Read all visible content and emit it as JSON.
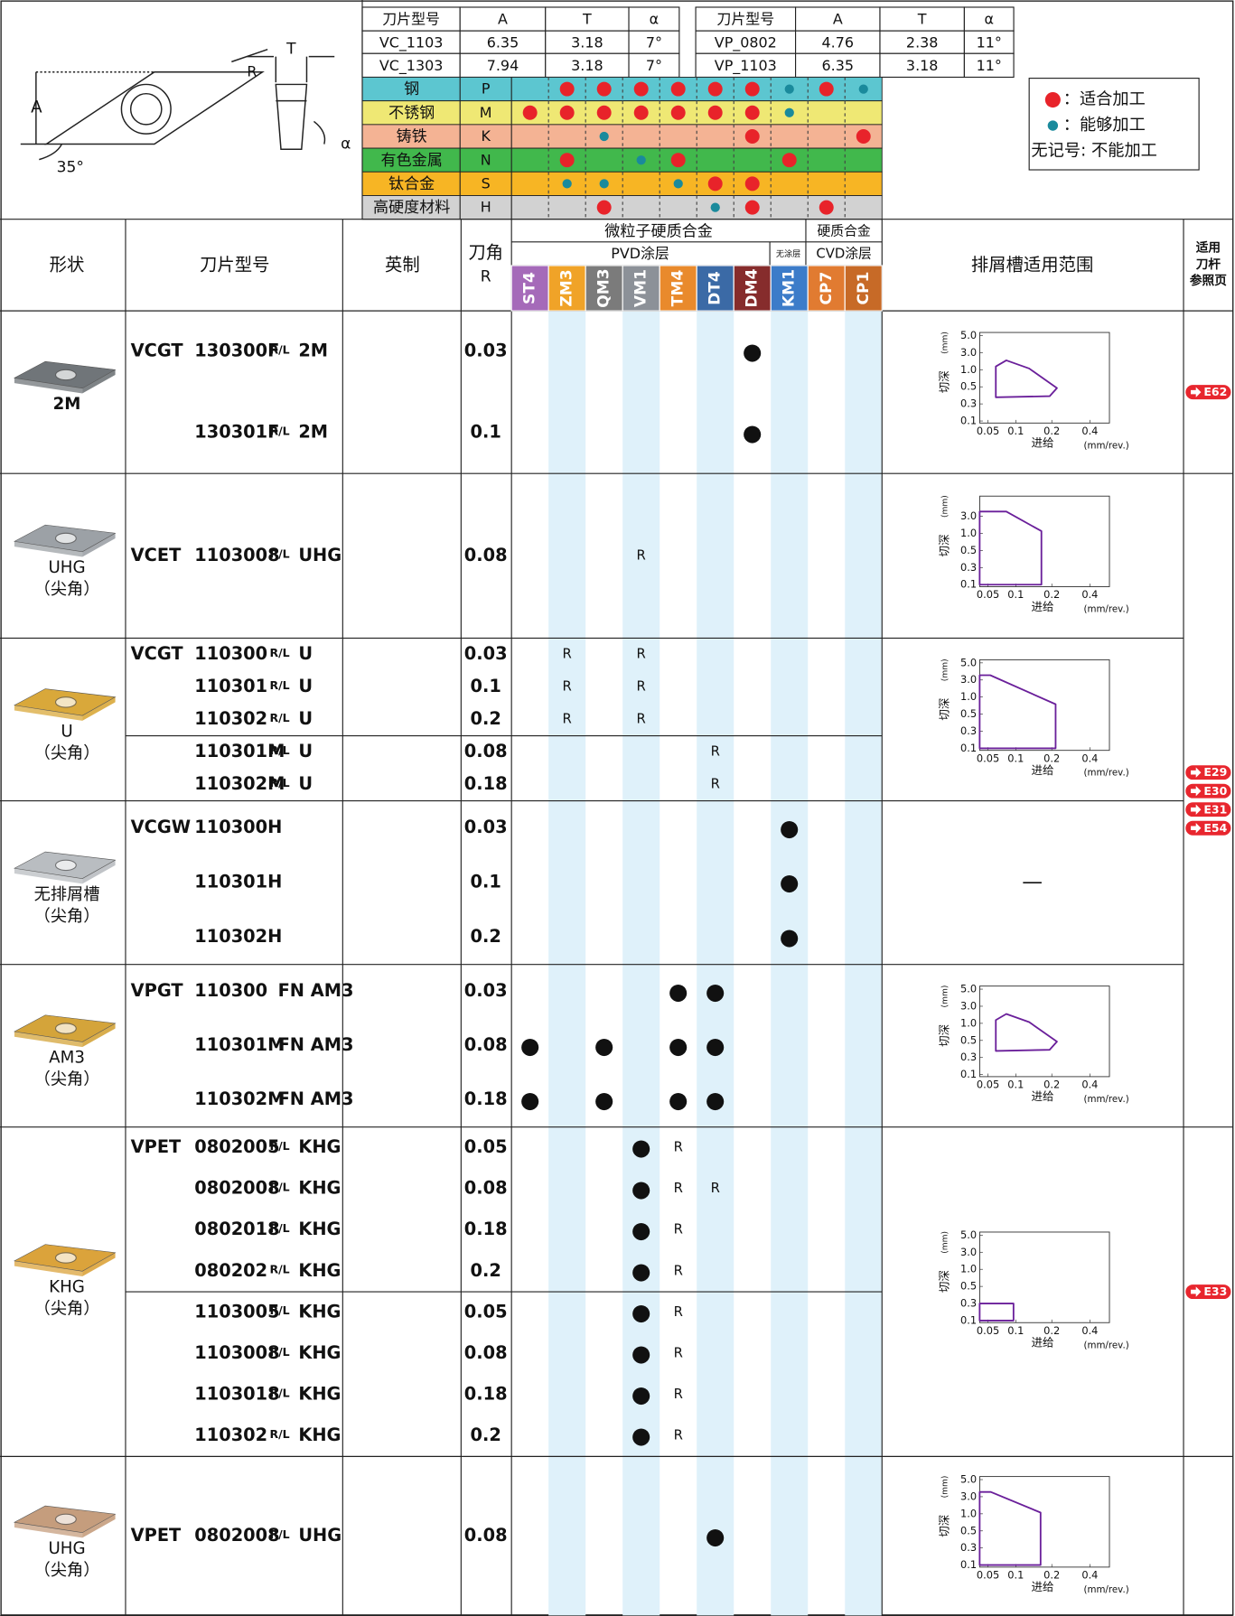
{
  "header": {
    "dims": {
      "columns": [
        "刀片型号",
        "A",
        "T",
        "α",
        "刀片型号",
        "A",
        "T",
        "α"
      ],
      "rows": [
        [
          "VC_1103",
          6.35,
          3.18,
          "7°",
          "VP_0802",
          4.76,
          2.38,
          "11°"
        ],
        [
          "VC_1303",
          7.94,
          3.18,
          "7°",
          "VP_1103",
          6.35,
          3.18,
          "11°"
        ]
      ]
    },
    "diagram": {
      "a": "A",
      "t": "T",
      "r": "R",
      "alpha": "α",
      "angle": "35°"
    },
    "materials": [
      {
        "name": "钢",
        "code": "P",
        "color": "#5cc6d0",
        "suitable": [
          "ZM3",
          "QM3",
          "VM1",
          "TM4",
          "DT4",
          "DM4",
          "CP7"
        ],
        "capable": [
          "KM1",
          "CP1"
        ]
      },
      {
        "name": "不锈钢",
        "code": "M",
        "color": "#efe874",
        "suitable": [
          "ST4",
          "ZM3",
          "QM3",
          "VM1",
          "TM4",
          "DT4",
          "DM4"
        ],
        "capable": [
          "KM1"
        ]
      },
      {
        "name": "铸铁",
        "code": "K",
        "color": "#f4b394",
        "suitable": [
          "DM4",
          "CP1"
        ],
        "capable": [
          "QM3"
        ]
      },
      {
        "name": "有色金属",
        "code": "N",
        "color": "#41b84c",
        "suitable": [
          "ZM3",
          "TM4",
          "KM1"
        ],
        "capable": [
          "VM1"
        ]
      },
      {
        "name": "钛合金",
        "code": "S",
        "color": "#f7b524",
        "suitable": [
          "DT4",
          "DM4"
        ],
        "capable": [
          "ZM3",
          "QM3",
          "TM4"
        ]
      },
      {
        "name": "高硬度材料",
        "code": "H",
        "color": "#d2d2d2",
        "suitable": [
          "QM3",
          "DM4",
          "CP7"
        ],
        "capable": [
          "DT4"
        ]
      }
    ],
    "legend": [
      {
        "text": "：适合加工",
        "color": "#e8232a"
      },
      {
        "text": "：能够加工",
        "color": "#1a8a9c"
      },
      {
        "text": "无记号: 不能加工"
      }
    ]
  },
  "table": {
    "headers": {
      "shape": "形状",
      "model": "刀片型号",
      "imperial": "英制",
      "radius": [
        "刀角",
        "R"
      ],
      "micro": "微粒子硬质合金",
      "pvd": "PVD涂层",
      "uncoated": "无涂层",
      "carbide": "硬质合金",
      "cvd": "CVD涂层",
      "chipbreaker": "排屑槽适用范围",
      "ref": [
        "适用",
        "刀杆",
        "参照页"
      ]
    },
    "grades": [
      {
        "name": "ST4",
        "color": "#a56ab9"
      },
      {
        "name": "ZM3",
        "color": "#f0a328"
      },
      {
        "name": "QM3",
        "color": "#7b7b7b"
      },
      {
        "name": "VM1",
        "color": "#8c9198"
      },
      {
        "name": "TM4",
        "color": "#e98a2c"
      },
      {
        "name": "DT4",
        "color": "#3b6aa6"
      },
      {
        "name": "DM4",
        "color": "#862c2c"
      },
      {
        "name": "KM1",
        "color": "#3c7cc9"
      },
      {
        "name": "CP7",
        "color": "#e17b31"
      },
      {
        "name": "CP1",
        "color": "#c76a27"
      }
    ],
    "graph_axes": {
      "y_label": "切深",
      "y_unit": "(mm)",
      "x_label": "进给",
      "x_unit": "(mm/rev.)"
    },
    "groups": [
      {
        "shape": [
          "2M"
        ],
        "insert_color": "#707579",
        "sections": [
          [
            {
              "series": "VCGT",
              "code": "130300F",
              "hand": "R/L",
              "suffix": "2M",
              "r": 0.03,
              "cells": [
                null,
                null,
                null,
                null,
                null,
                null,
                "●",
                null,
                null,
                null
              ]
            },
            {
              "code": "130301F",
              "hand": "R/L",
              "suffix": "2M",
              "r": 0.1,
              "cells": [
                null,
                null,
                null,
                null,
                null,
                null,
                "●",
                null,
                null,
                null
              ]
            }
          ]
        ],
        "graph": {
          "xticks": [
            0.05,
            0.1,
            0.2,
            0.4
          ],
          "yticks": [
            0.1,
            0.3,
            0.5,
            {
              "value": 1,
              "label": "1.0"
            },
            {
              "value": 3,
              "label": "3.0"
            },
            {
              "value": 5,
              "label": "5.0"
            }
          ],
          "region": {
            "x": [
              0.064,
              0.064,
              0.083,
              0.137,
              0.227,
              0.194
            ],
            "y": [
              0.377,
              1.39,
              2.1,
              1.14,
              0.486,
              0.39
            ]
          }
        },
        "refs": [
          "E62"
        ]
      },
      {
        "shape": [
          "UHG",
          "（尖角）"
        ],
        "insert_color": "#9ca1a6",
        "sections": [
          [
            {
              "series": "VCET",
              "code": "1103008",
              "hand": "R/L",
              "suffix": "UHG",
              "r": 0.08,
              "cells": [
                null,
                null,
                null,
                "R",
                null,
                null,
                null,
                null,
                null,
                null
              ]
            }
          ]
        ],
        "graph": {
          "xticks": [
            0.05,
            0.1,
            0.2,
            0.4
          ],
          "yticks": [
            0.1,
            0.3,
            0.5,
            {
              "value": 1,
              "label": "1.0"
            },
            {
              "value": 3,
              "label": "3.0"
            }
          ],
          "region": {
            "x": [
              0.035,
              0.083,
              0.171,
              0.171,
              0.035
            ],
            "y": [
              3.55,
              3.55,
              1.27,
              0.1,
              0.1
            ]
          }
        }
      },
      {
        "shape": [
          "U",
          "（尖角）"
        ],
        "insert_color": "#d9a83a",
        "sections": [
          [
            {
              "series": "VCGT",
              "code": "110300",
              "hand": "R/L",
              "suffix": "U",
              "r": 0.03,
              "cells": [
                null,
                "R",
                null,
                "R",
                null,
                null,
                null,
                null,
                null,
                null
              ]
            },
            {
              "code": "110301",
              "hand": "R/L",
              "suffix": "U",
              "r": 0.1,
              "cells": [
                null,
                "R",
                null,
                "R",
                null,
                null,
                null,
                null,
                null,
                null
              ]
            },
            {
              "code": "110302",
              "hand": "R/L",
              "suffix": "U",
              "r": 0.2,
              "cells": [
                null,
                "R",
                null,
                "R",
                null,
                null,
                null,
                null,
                null,
                null
              ]
            }
          ],
          [
            {
              "code": "110301M",
              "hand": "R/L",
              "suffix": "U",
              "r": 0.08,
              "cells": [
                null,
                null,
                null,
                null,
                null,
                "R",
                null,
                null,
                null,
                null
              ]
            },
            {
              "code": "110302M",
              "hand": "R/L",
              "suffix": "U",
              "r": 0.18,
              "cells": [
                null,
                null,
                null,
                null,
                null,
                "R",
                null,
                null,
                null,
                null
              ]
            }
          ]
        ],
        "graph": {
          "xticks": [
            0.05,
            0.1,
            0.2,
            0.4
          ],
          "yticks": [
            0.1,
            0.3,
            0.5,
            {
              "value": 1,
              "label": "1.0"
            },
            {
              "value": 3,
              "label": "3.0"
            },
            {
              "value": 5,
              "label": "5.0"
            }
          ],
          "region": {
            "x": [
              0.035,
              0.054,
              0.22,
              0.22,
              0.035
            ],
            "y": [
              3.55,
              3.55,
              0.79,
              0.1,
              0.1
            ]
          }
        },
        "refs": [
          "E29",
          "E30",
          "E31",
          "E54"
        ]
      },
      {
        "shape": [
          "无排屑槽",
          "（尖角）"
        ],
        "insert_color": "#b9bdc1",
        "sections": [
          [
            {
              "series": "VCGW",
              "code": "110300H",
              "r": 0.03,
              "cells": [
                null,
                null,
                null,
                null,
                null,
                null,
                null,
                "●",
                null,
                null
              ]
            },
            {
              "code": "110301H",
              "r": 0.1,
              "cells": [
                null,
                null,
                null,
                null,
                null,
                null,
                null,
                "●",
                null,
                null
              ]
            },
            {
              "code": "110302H",
              "r": 0.2,
              "cells": [
                null,
                null,
                null,
                null,
                null,
                null,
                null,
                "●",
                null,
                null
              ]
            }
          ]
        ],
        "graph": {
          "text": "—"
        }
      },
      {
        "shape": [
          "AM3",
          "（尖角）"
        ],
        "insert_color": "#d4a43a",
        "sections": [
          [
            {
              "series": "VPGT",
              "code": "110300",
              "suffix": "FN AM3",
              "r": 0.03,
              "cells": [
                null,
                null,
                null,
                null,
                "●",
                "●",
                null,
                null,
                null,
                null
              ]
            },
            {
              "code": "110301M",
              "suffix": "FN AM3",
              "r": 0.08,
              "cells": [
                "●",
                null,
                "●",
                null,
                "●",
                "●",
                null,
                null,
                null,
                null
              ]
            },
            {
              "code": "110302M",
              "suffix": "FN AM3",
              "r": 0.18,
              "cells": [
                "●",
                null,
                "●",
                null,
                "●",
                "●",
                null,
                null,
                null,
                null
              ]
            }
          ]
        ],
        "graph": {
          "xticks": [
            0.05,
            0.1,
            0.2,
            0.4
          ],
          "yticks": [
            0.1,
            0.3,
            0.5,
            {
              "value": 1,
              "label": "1.0"
            },
            {
              "value": 3,
              "label": "3.0"
            },
            {
              "value": 5,
              "label": "5.0"
            }
          ],
          "region": {
            "x": [
              0.064,
              0.064,
              0.083,
              0.137,
              0.227,
              0.194
            ],
            "y": [
              0.377,
              1.39,
              2.1,
              1.14,
              0.486,
              0.39
            ]
          }
        }
      },
      {
        "shape": [
          "KHG",
          "（尖角）"
        ],
        "insert_color": "#dba33b",
        "sections": [
          [
            {
              "series": "VPET",
              "code": "0802005",
              "hand": "R/L",
              "suffix": "KHG",
              "r": 0.05,
              "cells": [
                null,
                null,
                null,
                "●",
                "R",
                null,
                null,
                null,
                null,
                null
              ]
            },
            {
              "code": "0802008",
              "hand": "R/L",
              "suffix": "KHG",
              "r": 0.08,
              "cells": [
                null,
                null,
                null,
                "●",
                "R",
                "R",
                null,
                null,
                null,
                null
              ]
            },
            {
              "code": "0802018",
              "hand": "R/L",
              "suffix": "KHG",
              "r": 0.18,
              "cells": [
                null,
                null,
                null,
                "●",
                "R",
                null,
                null,
                null,
                null,
                null
              ]
            },
            {
              "code": "080202",
              "hand": "R/L",
              "suffix": "KHG",
              "r": 0.2,
              "cells": [
                null,
                null,
                null,
                "●",
                "R",
                null,
                null,
                null,
                null,
                null
              ]
            }
          ],
          [
            {
              "code": "1103005",
              "hand": "R/L",
              "suffix": "KHG",
              "r": 0.05,
              "cells": [
                null,
                null,
                null,
                "●",
                "R",
                null,
                null,
                null,
                null,
                null
              ]
            },
            {
              "code": "1103008",
              "hand": "R/L",
              "suffix": "KHG",
              "r": 0.08,
              "cells": [
                null,
                null,
                null,
                "●",
                "R",
                null,
                null,
                null,
                null,
                null
              ]
            },
            {
              "code": "1103018",
              "hand": "R/L",
              "suffix": "KHG",
              "r": 0.18,
              "cells": [
                null,
                null,
                null,
                "●",
                "R",
                null,
                null,
                null,
                null,
                null
              ]
            },
            {
              "code": "110302",
              "hand": "R/L",
              "suffix": "KHG",
              "r": 0.2,
              "cells": [
                null,
                null,
                null,
                "●",
                "R",
                null,
                null,
                null,
                null,
                null
              ]
            }
          ]
        ],
        "graph": {
          "xticks": [
            0.05,
            0.1,
            0.2,
            0.4
          ],
          "yticks": [
            0.1,
            0.3,
            0.5,
            {
              "value": 1,
              "label": "1.0"
            },
            {
              "value": 3,
              "label": "3.0"
            },
            {
              "value": 5,
              "label": "5.0"
            }
          ],
          "region": {
            "x": [
              0.035,
              0.096,
              0.096,
              0.035
            ],
            "y": [
              0.3,
              0.3,
              0.1,
              0.1
            ]
          }
        },
        "refs": [
          "E33"
        ]
      },
      {
        "shape": [
          "UHG",
          "（尖角）"
        ],
        "insert_color": "#c59d7d",
        "sections": [
          [
            {
              "series": "VPET",
              "code": "0802008",
              "hand": "R/L",
              "suffix": "UHG",
              "r": 0.08,
              "cells": [
                null,
                null,
                null,
                null,
                null,
                "●",
                null,
                null,
                null,
                null
              ]
            }
          ]
        ],
        "graph": {
          "xticks": [
            0.05,
            0.1,
            0.2,
            0.4
          ],
          "yticks": [
            0.1,
            0.3,
            0.5,
            {
              "value": 1,
              "label": "1.0"
            },
            {
              "value": 3,
              "label": "3.0"
            },
            {
              "value": 5,
              "label": "5.0"
            }
          ],
          "region": {
            "x": [
              0.035,
              0.055,
              0.169,
              0.169,
              0.035
            ],
            "y": [
              3.55,
              3.55,
              1.15,
              0.1,
              0.1
            ]
          }
        }
      }
    ]
  }
}
